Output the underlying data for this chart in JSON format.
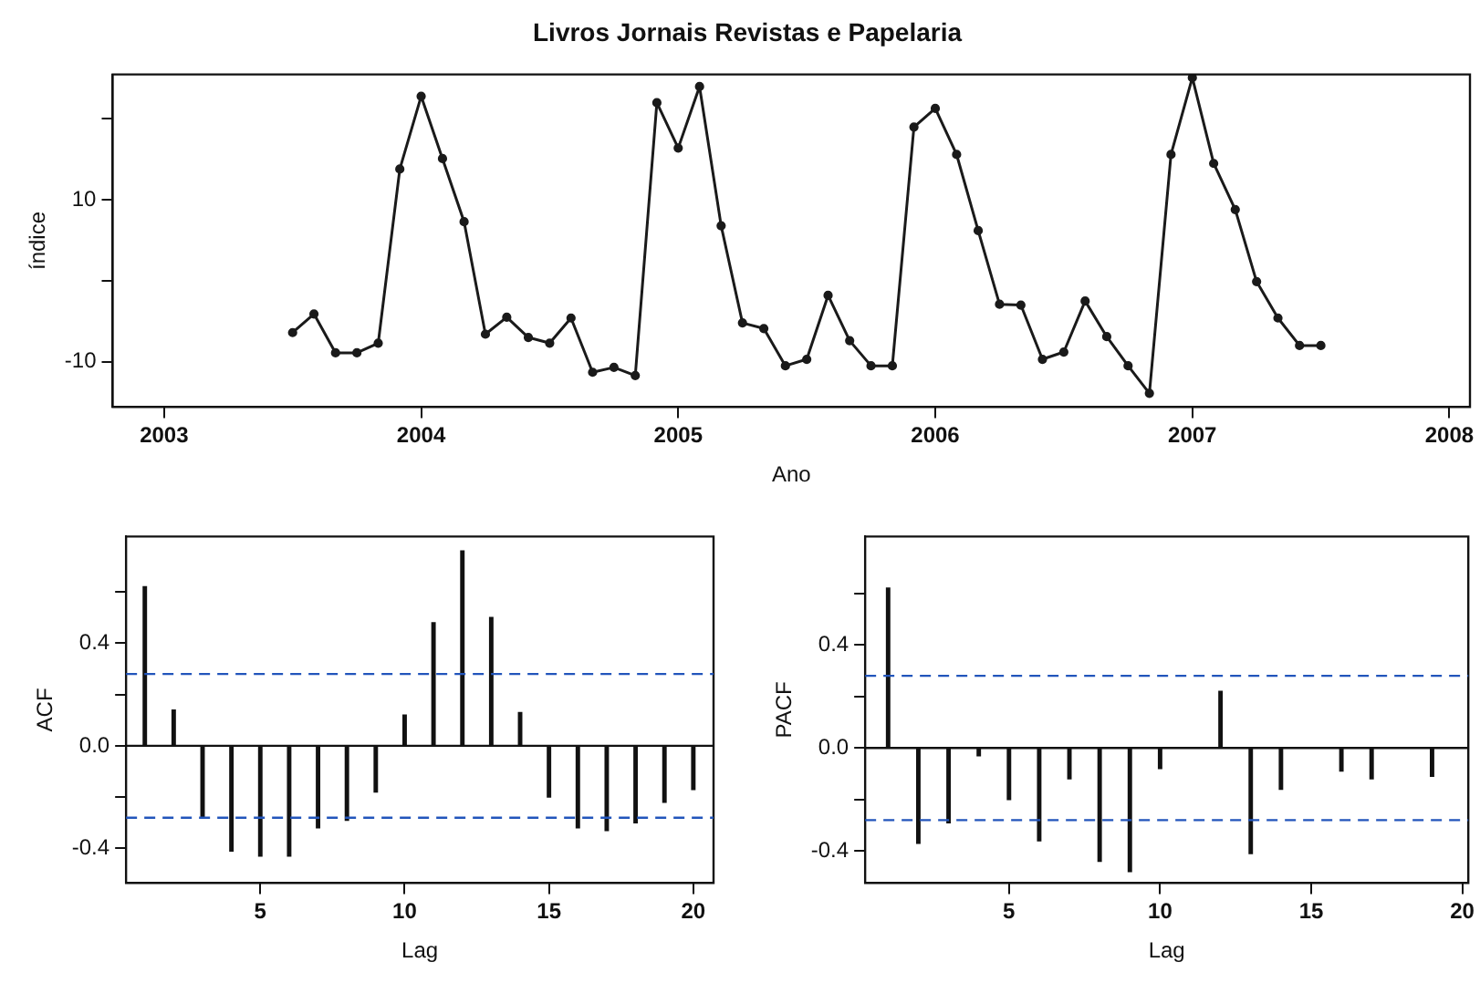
{
  "chart_data": [
    {
      "type": "line",
      "title": "Livros Jornais Revistas e Papelaria",
      "xlabel": "Ano",
      "ylabel": "índice",
      "marker": "circle",
      "grid": false,
      "legend": false,
      "x": [
        2003.5,
        2003.583,
        2003.667,
        2003.75,
        2003.833,
        2003.917,
        2004,
        2004.083,
        2004.167,
        2004.25,
        2004.333,
        2004.417,
        2004.5,
        2004.583,
        2004.667,
        2004.75,
        2004.833,
        2004.917,
        2005,
        2005.083,
        2005.167,
        2005.25,
        2005.333,
        2005.417,
        2005.5,
        2005.583,
        2005.667,
        2005.75,
        2005.833,
        2005.917,
        2006,
        2006.083,
        2006.167,
        2006.25,
        2006.333,
        2006.417,
        2006.5,
        2006.583,
        2006.667,
        2006.75,
        2006.833,
        2006.917,
        2007,
        2007.083,
        2007.167,
        2007.25,
        2007.333,
        2007.417,
        2007.5
      ],
      "series": [
        {
          "color": "#1a1a1a",
          "values": [
            -6.4,
            -4.1,
            -8.9,
            -8.9,
            -7.7,
            13.8,
            22.8,
            15.1,
            7.3,
            -6.6,
            -4.5,
            -7,
            -7.7,
            -4.6,
            -11.3,
            -10.7,
            -11.7,
            22,
            16.4,
            24,
            6.8,
            -5.2,
            -5.9,
            -10.5,
            -9.7,
            -1.8,
            -7.4,
            -10.5,
            -10.5,
            19,
            21.3,
            15.6,
            6.2,
            -2.9,
            -3,
            -9.7,
            -8.8,
            -2.5,
            -6.9,
            -10.5,
            -13.9,
            15.6,
            25.1,
            14.5,
            8.8,
            -0.1,
            -4.6,
            -8,
            -8
          ]
        }
      ],
      "xlim": [
        2002.8,
        2008.08
      ],
      "xticks": [
        2003,
        2004,
        2005,
        2006,
        2007,
        2008
      ],
      "ylim": [
        -15.6,
        25.5
      ],
      "yticks": [
        {
          "value": -10,
          "label": "-10"
        },
        {
          "value": 0,
          "label": null
        },
        {
          "value": 10,
          "label": "10"
        },
        {
          "value": 20,
          "label": null
        }
      ]
    },
    {
      "type": "bar",
      "xlabel": "Lag",
      "ylabel": "ACF",
      "grid": false,
      "legend": false,
      "x": [
        1,
        2,
        3,
        4,
        5,
        6,
        7,
        8,
        9,
        10,
        11,
        12,
        13,
        14,
        15,
        16,
        17,
        18,
        19,
        20
      ],
      "series": [
        {
          "color": "#111111",
          "values": [
            0.62,
            0.14,
            -0.28,
            -0.41,
            -0.43,
            -0.43,
            -0.32,
            -0.29,
            -0.18,
            0.12,
            0.48,
            0.76,
            0.5,
            0.13,
            -0.2,
            -0.32,
            -0.33,
            -0.3,
            -0.22,
            -0.17
          ]
        }
      ],
      "xlim": [
        0.35,
        20.7
      ],
      "xticks": [
        5,
        10,
        15,
        20
      ],
      "ylim": [
        -0.535,
        0.816
      ],
      "yticks": [
        {
          "value": -0.4,
          "label": "-0.4"
        },
        {
          "value": -0.2,
          "label": null
        },
        {
          "value": 0,
          "label": "0.0"
        },
        {
          "value": 0.2,
          "label": null
        },
        {
          "value": 0.4,
          "label": "0.4"
        },
        {
          "value": 0.6,
          "label": null
        }
      ],
      "ref_lines": [
        {
          "axis": "y",
          "value": 0,
          "color": "#111111",
          "line_style": "solid"
        },
        {
          "axis": "y",
          "value": 0.28,
          "color": "#2255bb",
          "line_style": "dashed"
        },
        {
          "axis": "y",
          "value": -0.28,
          "color": "#2255bb",
          "line_style": "dashed"
        }
      ]
    },
    {
      "type": "bar",
      "xlabel": "Lag",
      "ylabel": "PACF",
      "grid": false,
      "legend": false,
      "x": [
        1,
        2,
        3,
        4,
        5,
        6,
        7,
        8,
        9,
        10,
        11,
        12,
        13,
        14,
        15,
        16,
        17,
        18,
        19
      ],
      "series": [
        {
          "color": "#111111",
          "values": [
            0.62,
            -0.37,
            -0.29,
            -0.03,
            -0.2,
            -0.36,
            -0.12,
            -0.44,
            -0.48,
            -0.08,
            null,
            0.22,
            -0.41,
            -0.16,
            null,
            -0.09,
            -0.12,
            null,
            -0.11
          ]
        }
      ],
      "xlim": [
        0.24,
        20.2
      ],
      "xticks": [
        5,
        10,
        15,
        20
      ],
      "ylim": [
        -0.524,
        0.82
      ],
      "yticks": [
        {
          "value": -0.4,
          "label": "-0.4"
        },
        {
          "value": -0.2,
          "label": null
        },
        {
          "value": 0,
          "label": "0.0"
        },
        {
          "value": 0.2,
          "label": null
        },
        {
          "value": 0.4,
          "label": "0.4"
        },
        {
          "value": 0.6,
          "label": null
        }
      ],
      "ref_lines": [
        {
          "axis": "y",
          "value": 0,
          "color": "#111111",
          "line_style": "solid"
        },
        {
          "axis": "y",
          "value": 0.28,
          "color": "#2255bb",
          "line_style": "dashed"
        },
        {
          "axis": "y",
          "value": -0.28,
          "color": "#2255bb",
          "line_style": "dashed"
        }
      ]
    }
  ]
}
